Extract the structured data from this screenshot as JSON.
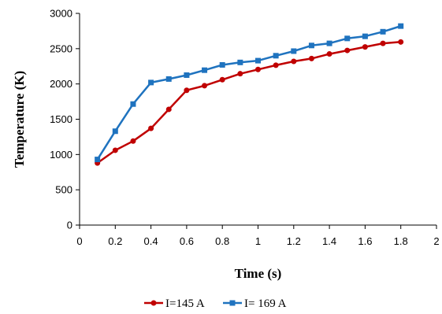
{
  "chart_data": {
    "type": "line",
    "title": "",
    "xlabel": "Time (s)",
    "ylabel": "Temperature (K)",
    "xlim": [
      0,
      2
    ],
    "ylim": [
      0,
      3000
    ],
    "x_ticks": [
      "0",
      "0.2",
      "0.4",
      "0.6",
      "0.8",
      "1",
      "1.2",
      "1.4",
      "1.6",
      "1.8",
      "2"
    ],
    "y_ticks": [
      "0",
      "500",
      "1000",
      "1500",
      "2000",
      "2500",
      "3000"
    ],
    "grid": false,
    "legend_position": "bottom",
    "x": [
      0.1,
      0.2,
      0.3,
      0.4,
      0.5,
      0.6,
      0.7,
      0.8,
      0.9,
      1.0,
      1.1,
      1.2,
      1.3,
      1.4,
      1.5,
      1.6,
      1.7,
      1.8
    ],
    "series": [
      {
        "name": "I=145 A",
        "color": "#C00000",
        "marker": "circle",
        "values": [
          880,
          1060,
          1190,
          1370,
          1640,
          1910,
          1975,
          2060,
          2145,
          2205,
          2265,
          2320,
          2360,
          2425,
          2475,
          2525,
          2575,
          2595
        ]
      },
      {
        "name": "I= 169 A",
        "color": "#1F73BF",
        "marker": "square",
        "values": [
          930,
          1330,
          1715,
          2020,
          2070,
          2125,
          2195,
          2270,
          2305,
          2330,
          2400,
          2465,
          2545,
          2575,
          2645,
          2675,
          2740,
          2820
        ]
      }
    ]
  }
}
